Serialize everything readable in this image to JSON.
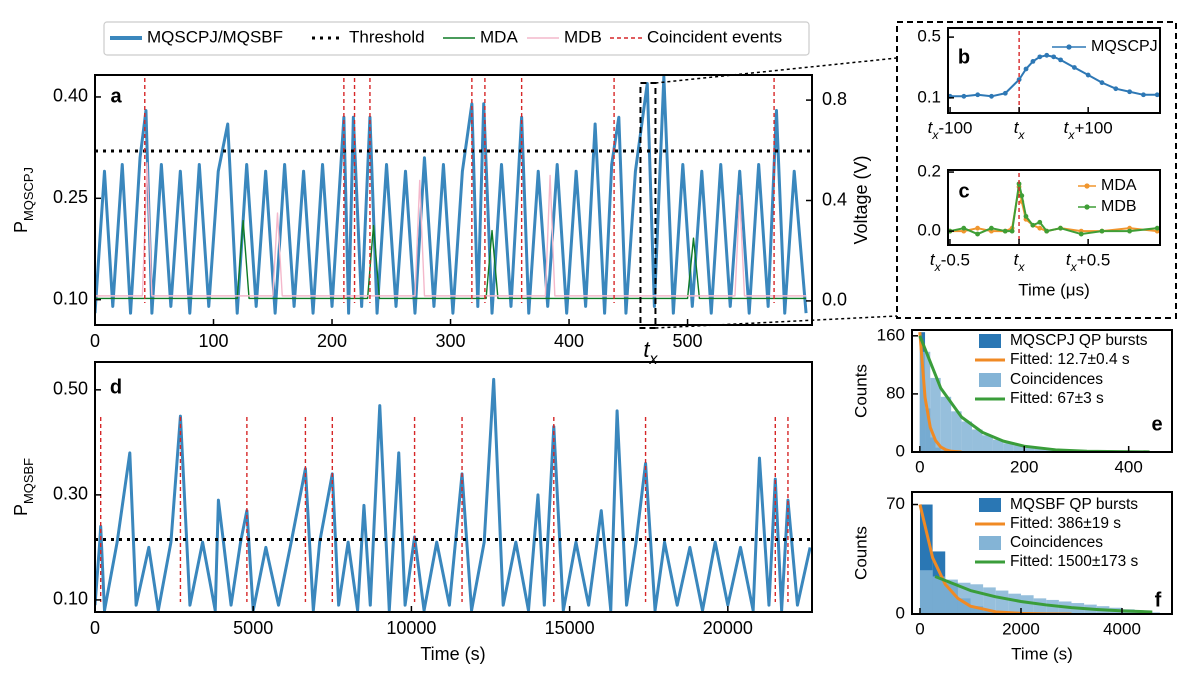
{
  "chart_data": [
    {
      "type": "line",
      "panel_label": "a",
      "ylabel": [
        "P",
        "MQSCPJ"
      ],
      "y2label": "Voltage (V)",
      "xlim": [
        0,
        605
      ],
      "ylim": [
        0.0625,
        0.4325
      ],
      "y2lim": [
        -0.096,
        0.9
      ],
      "xticks": [
        0,
        100,
        200,
        300,
        400,
        500
      ],
      "yticks": [
        {
          "value": 0.1,
          "label": "0.10"
        },
        0.25,
        {
          "value": 0.4,
          "label": "0.40"
        }
      ],
      "y2ticks": [
        {
          "value": 0,
          "label": "0.0"
        },
        0.4,
        0.8
      ],
      "series": [
        {
          "name": "MQSCPJ/MQSBF",
          "color": "#3a87bd",
          "x": [
            0,
            8,
            15,
            23,
            30,
            38,
            43,
            48,
            56,
            64,
            72,
            80,
            88,
            96,
            104,
            112,
            120,
            128,
            136,
            144,
            152,
            160,
            168,
            176,
            184,
            192,
            200,
            210,
            214,
            218,
            225,
            232,
            238,
            246,
            254,
            262,
            270,
            278,
            286,
            294,
            302,
            310,
            318,
            323,
            328,
            335,
            343,
            351,
            360,
            366,
            374,
            382,
            390,
            398,
            406,
            414,
            422,
            430,
            436,
            442,
            448,
            456,
            466,
            472,
            480,
            488,
            496,
            504,
            512,
            520,
            528,
            536,
            544,
            552,
            560,
            568,
            575,
            582,
            590,
            600
          ],
          "values": [
            0.08,
            0.29,
            0.09,
            0.3,
            0.08,
            0.31,
            0.38,
            0.08,
            0.3,
            0.09,
            0.29,
            0.08,
            0.3,
            0.09,
            0.29,
            0.36,
            0.08,
            0.3,
            0.09,
            0.29,
            0.08,
            0.3,
            0.09,
            0.29,
            0.08,
            0.3,
            0.09,
            0.37,
            0.08,
            0.37,
            0.09,
            0.37,
            0.08,
            0.3,
            0.09,
            0.29,
            0.08,
            0.31,
            0.09,
            0.3,
            0.08,
            0.29,
            0.39,
            0.09,
            0.39,
            0.08,
            0.3,
            0.09,
            0.37,
            0.08,
            0.29,
            0.09,
            0.3,
            0.08,
            0.29,
            0.09,
            0.36,
            0.08,
            0.3,
            0.37,
            0.08,
            0.29,
            0.42,
            0.09,
            0.43,
            0.08,
            0.3,
            0.09,
            0.29,
            0.08,
            0.3,
            0.09,
            0.29,
            0.08,
            0.3,
            0.09,
            0.38,
            0.08,
            0.29,
            0.08
          ]
        },
        {
          "name": "MDA",
          "color": "#0e7a25",
          "axis": "y2",
          "x": [
            0,
            120,
            125,
            130,
            230,
            235,
            240,
            330,
            335,
            340,
            500,
            505,
            510,
            600
          ],
          "values": [
            0.01,
            0.01,
            0.32,
            0.01,
            0.01,
            0.3,
            0.01,
            0.01,
            0.28,
            0.01,
            0.01,
            0.25,
            0.01,
            0.01
          ]
        },
        {
          "name": "MDB",
          "color": "#f4b8cb",
          "axis": "y2",
          "x": [
            0,
            40,
            44,
            48,
            150,
            154,
            158,
            270,
            274,
            278,
            380,
            384,
            388,
            540,
            544,
            548,
            600
          ],
          "values": [
            0.02,
            0.02,
            0.55,
            0.02,
            0.02,
            0.35,
            0.02,
            0.02,
            0.48,
            0.02,
            0.02,
            0.5,
            0.02,
            0.02,
            0.42,
            0.02,
            0.02
          ]
        }
      ],
      "threshold": {
        "name": "Threshold",
        "value": 0.32,
        "color": "#000000"
      },
      "events": {
        "name": "Coincident events",
        "color": "#d62728",
        "x": [
          42,
          210,
          219,
          232,
          318,
          329,
          360,
          438,
          573
        ]
      },
      "annotation": {
        "x": 467,
        "text": "tx"
      }
    },
    {
      "type": "line",
      "panel_label": "d",
      "xlabel": "Time (s)",
      "ylabel": [
        "P",
        "MQSBF"
      ],
      "xlim": [
        0,
        22660
      ],
      "ylim": [
        0.077,
        0.553
      ],
      "xticks": [
        0,
        5000,
        10000,
        15000,
        20000
      ],
      "yticks": [
        {
          "value": 0.1,
          "label": "0.10"
        },
        {
          "value": 0.3,
          "label": "0.30"
        },
        {
          "value": 0.5,
          "label": "0.50"
        }
      ],
      "series": [
        {
          "color": "#3a87bd",
          "x": [
            0,
            150,
            180,
            300,
            700,
            1100,
            1300,
            1700,
            2000,
            2400,
            2700,
            3000,
            3400,
            3800,
            3900,
            4300,
            4600,
            4800,
            5000,
            5400,
            5800,
            6200,
            6650,
            6900,
            7100,
            7500,
            7700,
            8000,
            8300,
            8500,
            8700,
            9000,
            9300,
            9600,
            9800,
            10100,
            10400,
            10800,
            11200,
            11600,
            11900,
            12300,
            12600,
            12900,
            13300,
            13700,
            14000,
            14200,
            14500,
            14800,
            15200,
            15600,
            16000,
            16300,
            16500,
            16800,
            17100,
            17400,
            17700,
            18000,
            18400,
            18800,
            19200,
            19600,
            20000,
            20400,
            20800,
            21000,
            21300,
            21500,
            21700,
            21900,
            22200,
            22600
          ],
          "values": [
            0.09,
            0.21,
            0.24,
            0.08,
            0.21,
            0.38,
            0.09,
            0.2,
            0.08,
            0.21,
            0.45,
            0.09,
            0.21,
            0.08,
            0.29,
            0.09,
            0.21,
            0.27,
            0.08,
            0.2,
            0.09,
            0.21,
            0.35,
            0.08,
            0.21,
            0.34,
            0.09,
            0.21,
            0.08,
            0.28,
            0.09,
            0.47,
            0.08,
            0.38,
            0.09,
            0.22,
            0.08,
            0.21,
            0.09,
            0.34,
            0.08,
            0.21,
            0.52,
            0.09,
            0.21,
            0.08,
            0.3,
            0.09,
            0.43,
            0.08,
            0.21,
            0.09,
            0.27,
            0.08,
            0.46,
            0.09,
            0.21,
            0.36,
            0.08,
            0.21,
            0.09,
            0.2,
            0.08,
            0.21,
            0.09,
            0.2,
            0.08,
            0.37,
            0.09,
            0.33,
            0.08,
            0.29,
            0.09,
            0.2
          ]
        }
      ],
      "threshold": {
        "value": 0.215,
        "color": "#000000"
      },
      "events": {
        "color": "#d62728",
        "x": [
          180,
          2700,
          4800,
          6650,
          7500,
          10100,
          11600,
          14500,
          17400,
          21500,
          21900
        ]
      }
    },
    {
      "type": "line",
      "panel_label": "b",
      "xlim": [
        -103,
        204
      ],
      "ylim": [
        0,
        0.56
      ],
      "xticks": [
        {
          "value": -100,
          "label": "tx-100"
        },
        {
          "value": 0,
          "label": "tx"
        },
        {
          "value": 100,
          "label": "tx+100"
        }
      ],
      "yticks": [
        0.1,
        0.5
      ],
      "series": [
        {
          "name": "MQSCPJ",
          "color": "#2e78b5",
          "marker": true,
          "x": [
            -100,
            -80,
            -60,
            -40,
            -20,
            0,
            10,
            20,
            30,
            40,
            50,
            60,
            80,
            100,
            120,
            140,
            160,
            180,
            200
          ],
          "values": [
            0.11,
            0.11,
            0.12,
            0.11,
            0.13,
            0.22,
            0.29,
            0.34,
            0.37,
            0.38,
            0.37,
            0.35,
            0.3,
            0.25,
            0.2,
            0.16,
            0.14,
            0.12,
            0.12
          ]
        }
      ],
      "events": {
        "color": "#d62728",
        "x": [
          0
        ]
      }
    },
    {
      "type": "line",
      "panel_label": "c",
      "xlabel": "Time (μs)",
      "xlim": [
        -0.514,
        1.02
      ],
      "ylim": [
        -0.047,
        0.207
      ],
      "xticks": [
        {
          "value": -0.5,
          "label": "tx-0.5"
        },
        {
          "value": 0,
          "label": "tx"
        },
        {
          "value": 0.5,
          "label": "tx+0.5"
        }
      ],
      "yticks": [
        {
          "value": 0,
          "label": "0.0"
        },
        0.2
      ],
      "series": [
        {
          "name": "MDA",
          "color": "#f0962e",
          "marker": true,
          "x": [
            -0.5,
            -0.4,
            -0.3,
            -0.2,
            -0.1,
            -0.05,
            0,
            0.02,
            0.05,
            0.1,
            0.15,
            0.2,
            0.3,
            0.45,
            0.6,
            0.8,
            1.0
          ],
          "values": [
            0.0,
            0.0,
            0.01,
            0.0,
            0.0,
            0.01,
            0.15,
            0.1,
            0.04,
            0.02,
            0.01,
            0.0,
            0.01,
            0.0,
            0.0,
            0.01,
            0.0
          ]
        },
        {
          "name": "MDB",
          "color": "#3f9e36",
          "marker": true,
          "x": [
            -0.5,
            -0.4,
            -0.3,
            -0.2,
            -0.1,
            -0.05,
            0,
            0.02,
            0.05,
            0.1,
            0.15,
            0.2,
            0.3,
            0.45,
            0.6,
            0.8,
            1.0
          ],
          "values": [
            0.0,
            0.01,
            -0.01,
            0.01,
            0.0,
            0.0,
            0.16,
            0.12,
            0.05,
            0.02,
            0.03,
            0.0,
            0.01,
            -0.01,
            0.0,
            0.0,
            0.01
          ]
        }
      ],
      "events": {
        "color": "#d62728",
        "x": [
          0
        ]
      }
    },
    {
      "type": "histogram",
      "panel_label": "e",
      "ylabel": "Counts",
      "xlim": [
        -15,
        483
      ],
      "ylim": [
        0,
        168
      ],
      "xticks": [
        0,
        200,
        400
      ],
      "yticks": [
        0,
        80,
        160
      ],
      "series": [
        {
          "name": "MQSCPJ QP bursts",
          "type": "histogram",
          "color": "#2a77b4",
          "bins": [
            0,
            10,
            20,
            30,
            40,
            50
          ],
          "values": [
            165,
            60,
            20,
            6,
            2
          ]
        },
        {
          "name": "Fitted: 12.7±0.4 s",
          "type": "line",
          "color": "#f08a24",
          "x": [
            0,
            10,
            20,
            30,
            40,
            50,
            60,
            80
          ],
          "values": [
            165,
            75,
            34,
            16,
            7,
            3,
            1,
            0
          ]
        },
        {
          "name": "Coincidences",
          "type": "histogram",
          "color": "#84b4d6",
          "bins": [
            0,
            20,
            40,
            60,
            80,
            100,
            120,
            140,
            160,
            180,
            200,
            220,
            240,
            260,
            280,
            300,
            320,
            340,
            360,
            380,
            400,
            420,
            440
          ],
          "values": [
            138,
            102,
            76,
            56,
            42,
            31,
            23,
            17,
            12,
            9,
            7,
            5,
            4,
            3,
            2,
            2,
            1,
            1,
            1,
            0,
            0,
            0
          ]
        },
        {
          "name": "Fitted: 67±3 s",
          "type": "line",
          "color": "#3a9d3a",
          "x": [
            0,
            40,
            80,
            120,
            160,
            200,
            260,
            320,
            380,
            440
          ],
          "values": [
            160,
            88,
            48,
            27,
            15,
            8,
            3,
            1,
            0.5,
            0.2
          ]
        }
      ]
    },
    {
      "type": "histogram",
      "panel_label": "f",
      "ylabel": "Counts",
      "xlabel": "Time (s)",
      "xlim": [
        -158,
        4990
      ],
      "ylim": [
        0,
        78
      ],
      "xticks": [
        0,
        2000,
        4000
      ],
      "yticks": [
        0,
        70
      ],
      "series": [
        {
          "name": "MQSBF QP bursts",
          "type": "histogram",
          "color": "#2a77b4",
          "bins": [
            0,
            250,
            500,
            750,
            1000,
            1250,
            1500
          ],
          "values": [
            70,
            40,
            20,
            10,
            5,
            2
          ]
        },
        {
          "name": "Fitted: 386±19 s",
          "type": "line",
          "color": "#f08a24",
          "x": [
            0,
            250,
            500,
            750,
            1000,
            1500,
            2000,
            2500,
            3000
          ],
          "values": [
            70,
            36,
            19,
            10,
            5,
            1.4,
            0.4,
            0.1,
            0
          ]
        },
        {
          "name": "Coincidences",
          "type": "histogram",
          "color": "#84b4d6",
          "bins": [
            0,
            250,
            500,
            750,
            1000,
            1250,
            1500,
            1750,
            2000,
            2250,
            2500,
            2750,
            3000,
            3250,
            3500,
            3750,
            4000,
            4250,
            4500,
            4750
          ],
          "values": [
            28,
            24,
            22,
            20,
            19,
            17,
            15,
            13,
            12,
            10,
            9,
            8,
            7,
            6,
            5,
            4,
            3,
            2,
            1
          ]
        },
        {
          "name": "Fitted: 1500±173 s",
          "type": "line",
          "color": "#3a9d3a",
          "x": [
            300,
            1000,
            1500,
            2000,
            2500,
            3000,
            3500,
            4000,
            4600
          ],
          "values": [
            24,
            15,
            11,
            8,
            5.8,
            4.1,
            2.9,
            2,
            1.3
          ]
        }
      ]
    }
  ]
}
